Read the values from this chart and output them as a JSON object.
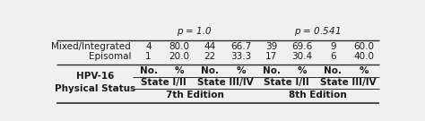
{
  "edition_7": "7th Edition",
  "edition_8": "8th Edition",
  "state_labels": [
    "State I/II",
    "State III/IV",
    "State I/II",
    "State III/IV"
  ],
  "col_labels": [
    "No.",
    "%",
    "No.",
    "%",
    "No.",
    "%",
    "No.",
    "%"
  ],
  "row_label_header": "HPV-16\nPhysical Status",
  "rows": [
    [
      "Episomal",
      "1",
      "20.0",
      "22",
      "33.3",
      "17",
      "30.4",
      "6",
      "40.0"
    ],
    [
      "Mixed/Integrated",
      "4",
      "80.0",
      "44",
      "66.7",
      "39",
      "69.6",
      "9",
      "60.0"
    ]
  ],
  "footer_left": "p = 1.0",
  "footer_right": "p = 0.541",
  "bg_color": "#f0f0f0",
  "line_color": "#2b2b2b",
  "text_color": "#1a1a1a",
  "fontsize": 7.5,
  "bold_fontsize": 7.5
}
